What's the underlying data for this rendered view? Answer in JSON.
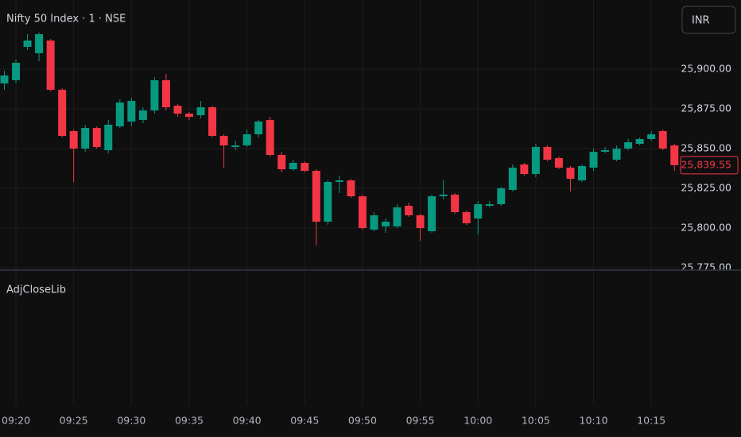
{
  "chart_data": {
    "type": "candlestick",
    "title": "Nifty 50 Index · 1 · NSE",
    "currency": "INR",
    "indicator": "AdjCloseLib",
    "up_color": "#089981",
    "down_color": "#f23645",
    "categories": [
      null,
      "09:20",
      null,
      null,
      null,
      null,
      "09:25",
      null,
      null,
      null,
      null,
      "09:30",
      null,
      null,
      null,
      null,
      "09:35",
      null,
      null,
      null,
      null,
      "09:40",
      null,
      null,
      null,
      null,
      "09:45",
      null,
      null,
      null,
      null,
      "09:50",
      null,
      null,
      null,
      null,
      "09:55",
      null,
      null,
      null,
      null,
      "10:00",
      null,
      null,
      null,
      null,
      "10:05",
      null,
      null,
      null,
      null,
      "10:10",
      null,
      null,
      null,
      null,
      "10:15",
      null,
      null
    ],
    "open": [
      25891,
      25893,
      25914,
      25910,
      25918,
      25887,
      25861,
      25850,
      25863,
      25849,
      25864,
      25867,
      25868,
      25874,
      25893,
      25877,
      25872,
      25871,
      25876,
      25858,
      25851,
      25852,
      25859,
      25868,
      25846,
      25837,
      25841,
      25836,
      25804,
      25829,
      25830,
      25820,
      25799,
      25801,
      25801,
      25814,
      25808,
      25798,
      25820,
      25821,
      25810,
      25806,
      25814,
      25815,
      25824,
      25840,
      25834,
      25851,
      25844,
      25838,
      25830,
      25838,
      25848,
      25843,
      25850,
      25853,
      25856,
      25861,
      25852
    ],
    "high": [
      25899,
      25906,
      25922,
      25923,
      25919,
      25888,
      25862,
      25865,
      25864,
      25868,
      25881,
      25882,
      25876,
      25895,
      25897,
      25878,
      25873,
      25880,
      25877,
      25859,
      25855,
      25862,
      25868,
      25870,
      25848,
      25843,
      25842,
      25837,
      25830,
      25833,
      25831,
      25821,
      25810,
      25806,
      25815,
      25816,
      25809,
      25821,
      25830,
      25822,
      25811,
      25817,
      25817,
      25826,
      25840,
      25841,
      25853,
      25852,
      25845,
      25839,
      25840,
      25850,
      25851,
      25852,
      25856,
      25857,
      25861,
      25862,
      25853
    ],
    "low": [
      25887,
      25891,
      25912,
      25905,
      25886,
      25857,
      25829,
      25848,
      25850,
      25847,
      25863,
      25864,
      25866,
      25872,
      25874,
      25870,
      25868,
      25869,
      25857,
      25838,
      25849,
      25851,
      25857,
      25845,
      25835,
      25836,
      25835,
      25789,
      25802,
      25822,
      25819,
      25799,
      25798,
      25797,
      25800,
      25807,
      25792,
      25797,
      25818,
      25809,
      25802,
      25796,
      25813,
      25814,
      25823,
      25833,
      25832,
      25842,
      25837,
      25823,
      25829,
      25836,
      25847,
      25842,
      25849,
      25852,
      25855,
      25849,
      25836
    ],
    "close": [
      25896,
      25904,
      25918,
      25922,
      25887,
      25858,
      25850,
      25863,
      25851,
      25865,
      25879,
      25880,
      25874,
      25893,
      25876,
      25872,
      25870,
      25876,
      25858,
      25852,
      25852,
      25859,
      25867,
      25846,
      25837,
      25841,
      25836,
      25804,
      25829,
      25830,
      25820,
      25800,
      25808,
      25804,
      25813,
      25808,
      25800,
      25820,
      25821,
      25810,
      25803,
      25815,
      25815,
      25825,
      25838,
      25834,
      25851,
      25843,
      25838,
      25831,
      25839,
      25848,
      25849,
      25850,
      25854,
      25856,
      25859,
      25850,
      25839.55
    ],
    "last_price": {
      "value": 25839.55,
      "label": "25,839.55"
    },
    "ylim": [
      25773.5,
      25943.5
    ],
    "yticks": [
      {
        "value": 25775,
        "label": "25,775.00"
      },
      {
        "value": 25800,
        "label": "25,800.00"
      },
      {
        "value": 25825,
        "label": "25,825.00"
      },
      {
        "value": 25850,
        "label": "25,850.00"
      },
      {
        "value": 25875,
        "label": "25,875.00"
      },
      {
        "value": 25900,
        "label": "25,900.00"
      }
    ],
    "grid": true
  }
}
